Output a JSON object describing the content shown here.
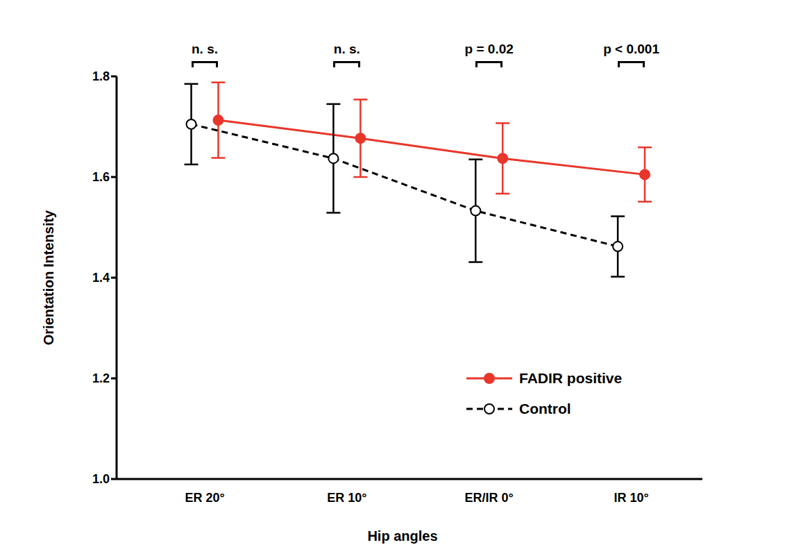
{
  "chart_data": {
    "type": "line",
    "x_label": "Hip angles",
    "y_label": "Orientation Intensity",
    "categories": [
      "ER 20°",
      "ER 10°",
      "ER/IR 0°",
      "IR 10°"
    ],
    "ylim": [
      1.0,
      1.8
    ],
    "yticks": [
      {
        "value": 1.0,
        "label": "1.0"
      },
      1.2,
      1.4,
      1.6,
      1.8
    ],
    "annotations": [
      "n. s.",
      "n. s.",
      "p = 0.02",
      "p < 0.001"
    ],
    "legend": "lower right",
    "series": [
      {
        "name": "FADIR positive",
        "color": "#e8362a",
        "marker": "filled_circle",
        "line_style": "solid",
        "values": [
          1.713,
          1.677,
          1.637,
          1.605
        ],
        "errors": [
          0.075,
          0.077,
          0.07,
          0.054
        ]
      },
      {
        "name": "Control",
        "color": "#000000",
        "marker": "open_circle",
        "line_style": "dashed",
        "values": [
          1.705,
          1.637,
          1.533,
          1.462
        ],
        "errors": [
          0.08,
          0.108,
          0.102,
          0.06
        ]
      }
    ]
  }
}
